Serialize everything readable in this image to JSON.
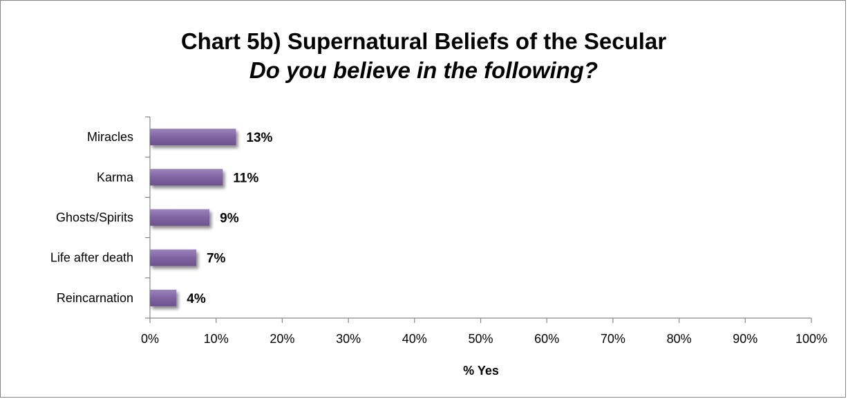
{
  "chart_data": {
    "type": "bar",
    "orientation": "horizontal",
    "title": "Chart 5b) Supernatural Beliefs of the Secular",
    "subtitle": "Do you believe in the following?",
    "categories": [
      "Miracles",
      "Karma",
      "Ghosts/Spirits",
      "Life after death",
      "Reincarnation"
    ],
    "values": [
      13,
      11,
      9,
      7,
      4
    ],
    "data_labels": [
      "13%",
      "11%",
      "9%",
      "7%",
      "4%"
    ],
    "xlabel": "% Yes",
    "ylabel": "",
    "xlim": [
      0,
      100
    ],
    "x_ticks": [
      "0%",
      "10%",
      "20%",
      "30%",
      "40%",
      "50%",
      "60%",
      "70%",
      "80%",
      "90%",
      "100%"
    ],
    "bar_color": "#8064A2",
    "grid": false,
    "legend": "none"
  }
}
